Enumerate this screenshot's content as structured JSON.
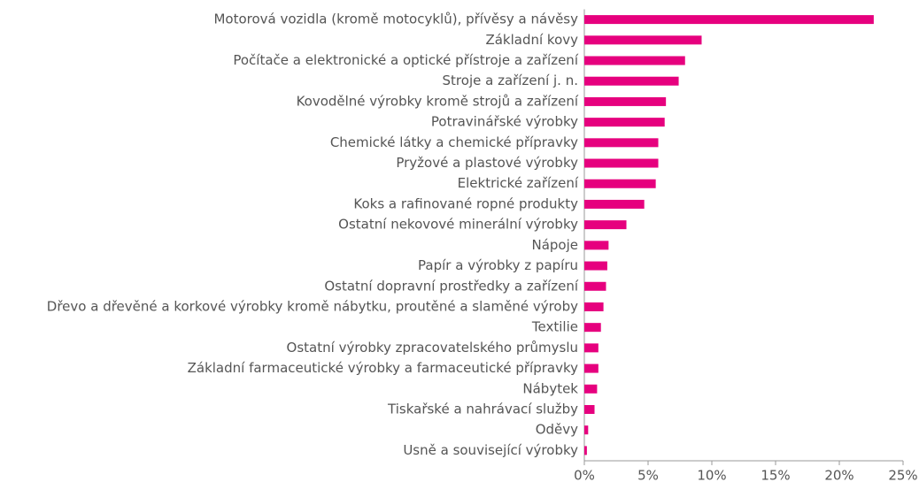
{
  "chart_data": {
    "type": "bar",
    "orientation": "horizontal",
    "categories": [
      "Motorová vozidla (kromě motocyklů), přívěsy a návěsy",
      "Základní kovy",
      "Počítače a elektronické a optické přístroje a zařízení",
      "Stroje a zařízení j. n.",
      "Kovodělné výrobky kromě strojů a zařízení",
      "Potravinářské výrobky",
      "Chemické látky a chemické přípravky",
      "Pryžové a plastové výrobky",
      "Elektrické zařízení",
      "Koks a rafinované ropné produkty",
      "Ostatní nekovové minerální výrobky",
      "Nápoje",
      "Papír a výrobky z papíru",
      "Ostatní dopravní prostředky a zařízení",
      "Dřevo a dřevěné a korkové výrobky kromě nábytku, proutěné a slaměné výroby",
      "Textilie",
      "Ostatní výrobky zpracovatelského průmyslu",
      "Základní farmaceutické výrobky a farmaceutické přípravky",
      "Nábytek",
      "Tiskařské a nahrávací služby",
      "Oděvy",
      "Usně a související výrobky"
    ],
    "values": [
      22.7,
      9.2,
      7.9,
      7.4,
      6.4,
      6.3,
      5.8,
      5.8,
      5.6,
      4.7,
      3.3,
      1.9,
      1.8,
      1.7,
      1.5,
      1.3,
      1.1,
      1.1,
      1.0,
      0.8,
      0.3,
      0.2
    ],
    "color": "#e6007e",
    "xlim": [
      0,
      25
    ],
    "xticks": [
      {
        "value": 0,
        "label": "0%"
      },
      {
        "value": 5,
        "label": "5%"
      },
      {
        "value": 10,
        "label": "10%"
      },
      {
        "value": 15,
        "label": "15%"
      },
      {
        "value": 20,
        "label": "20%"
      },
      {
        "value": 25,
        "label": "25%"
      }
    ],
    "grid": false
  }
}
